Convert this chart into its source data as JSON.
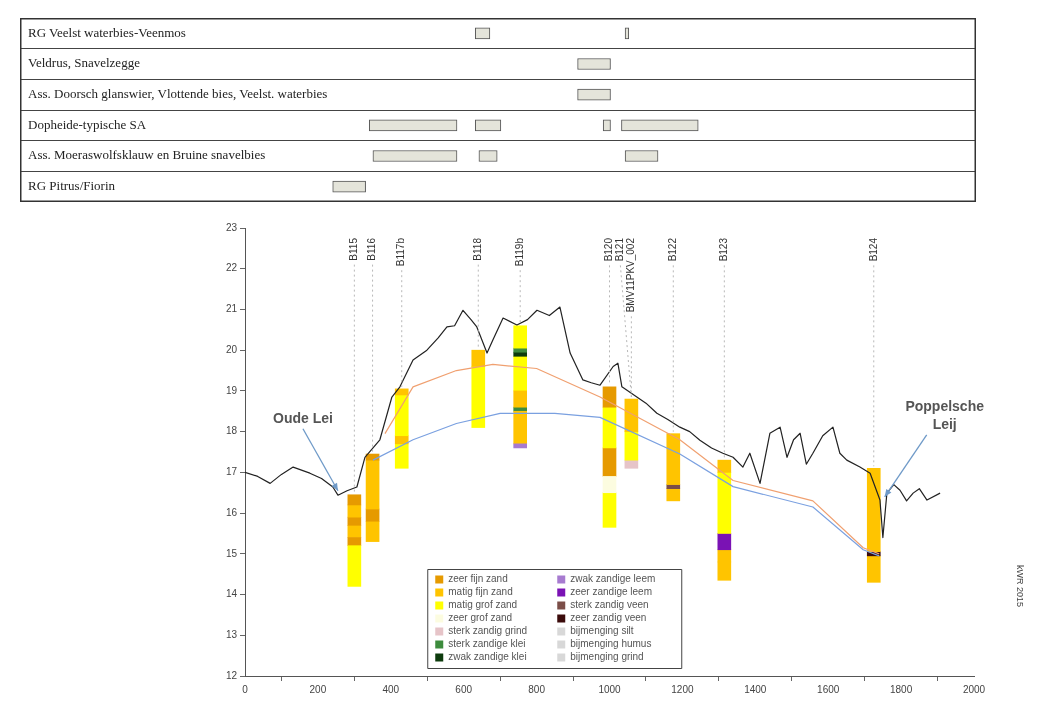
{
  "chart_data": [
    {
      "type": "bar",
      "orientation": "horizontal",
      "categories": [
        "RG Veelst waterbies-Veenmos",
        "Veldrus, Snavelzegge",
        "Ass. Doorsch glanswier, Vlottende bies, Veelst. waterbies",
        "Dopheide-typische SA",
        "Ass. Moeraswolfsklauw en Bruine snavelbies",
        "RG Pitrus/Fiorin"
      ],
      "xlim": [
        0,
        2000
      ],
      "tick_labels": "y",
      "grid": "y",
      "series": [
        {
          "color": "#e4e4da",
          "base": [
            630,
            910,
            910,
            340,
            350,
            240
          ],
          "values": [
            40,
            90,
            90,
            240,
            230,
            90
          ]
        },
        {
          "color": "#e4e4da",
          "base": [
            1040,
            null,
            null,
            630,
            640,
            null
          ],
          "values": [
            10,
            null,
            null,
            70,
            50,
            null
          ]
        },
        {
          "color": "#e4e4da",
          "base": [
            null,
            null,
            null,
            980,
            1040,
            null
          ],
          "values": [
            null,
            null,
            null,
            20,
            90,
            null
          ]
        },
        {
          "color": "#e4e4da",
          "base": [
            null,
            null,
            null,
            1030,
            null,
            null
          ],
          "values": [
            null,
            null,
            null,
            210,
            null,
            null
          ]
        }
      ]
    },
    {
      "type": "bar",
      "xlim": [
        0,
        2000
      ],
      "xticks": [
        0,
        200,
        400,
        600,
        800,
        1000,
        1200,
        1400,
        1600,
        1800,
        2000
      ],
      "ylim": [
        12,
        23
      ],
      "yticks": [
        12,
        13,
        14,
        15,
        16,
        17,
        18,
        19,
        20,
        21,
        22,
        23
      ],
      "legend": "bottom",
      "series": [
        {
          "name": "zeer fijn zand",
          "color": "#e69a00",
          "x": [
            300,
            350,
            1000
          ],
          "base": [
            16.2,
            17.3,
            18.6
          ],
          "values": [
            0.25,
            0.15,
            0.5
          ]
        },
        {
          "name": "matig fijn zand",
          "color": "#ffc400",
          "x": [
            300,
            350,
            430,
            640,
            755,
            1060,
            1175,
            1315,
            1725
          ],
          "base": [
            15.9,
            16.1,
            18.9,
            19.6,
            18.6,
            18.0,
            16.7,
            17.0,
            15.05
          ],
          "values": [
            0.3,
            1.2,
            0.15,
            0.4,
            0.4,
            0.8,
            1.25,
            0.3,
            2.05
          ]
        },
        {
          "name": "matig grof zand",
          "color": "#ffff00",
          "x": [
            300,
            430,
            640,
            755,
            1000,
            1060,
            1315
          ],
          "base": [
            14.2,
            17.9,
            18.1,
            20.05,
            17.6,
            17.3,
            15.5
          ],
          "values": [
            1.0,
            1.0,
            1.5,
            0.55,
            1.0,
            0.7,
            1.5
          ]
        },
        {
          "name": "zeer grof zand",
          "color": "#fcfce0",
          "x": [
            1000
          ],
          "base": [
            16.5
          ],
          "values": [
            0.4
          ]
        },
        {
          "name": "sterk zandig grind",
          "color": "#e6c4c8",
          "x": [
            1060
          ],
          "base": [
            17.1
          ],
          "values": [
            0.2
          ]
        },
        {
          "name": "sterk zandige klei",
          "color": "#3d8b3d",
          "x": [
            755
          ],
          "base": [
            19.95
          ],
          "values": [
            0.1
          ]
        },
        {
          "name": "zwak zandige klei",
          "color": "#0d3b0d",
          "x": [
            755
          ],
          "base": [
            19.85
          ],
          "values": [
            0.1
          ]
        },
        {
          "name": "zwak zandige leem",
          "color": "#a77bd0",
          "x": [
            755
          ],
          "base": [
            17.6
          ],
          "values": [
            0.1
          ]
        },
        {
          "name": "zeer zandige leem",
          "color": "#7a12b4",
          "x": [
            1315
          ],
          "base": [
            15.1
          ],
          "values": [
            0.4
          ]
        },
        {
          "name": "sterk zandig veen",
          "color": "#7b4e48",
          "x": [
            1175
          ],
          "base": [
            16.6
          ],
          "values": [
            0.1
          ]
        },
        {
          "name": "zeer zandig veen",
          "color": "#3b0b0b",
          "x": [
            1725
          ],
          "base": [
            14.95
          ],
          "values": [
            0.1
          ]
        },
        {
          "name": "bijmenging silt",
          "color": "#d8d8d8"
        },
        {
          "name": "bijmenging humus",
          "color": "#d8d8d8"
        },
        {
          "name": "bijmenging grind",
          "color": "#d8d8d8"
        },
        {
          "color": "#e69a00",
          "x": [
            300,
            350,
            1000
          ],
          "base": [
            15.7,
            15.8,
            16.9
          ],
          "values": [
            0.2,
            0.3,
            0.7
          ]
        },
        {
          "color": "#e69a00",
          "x": [
            300
          ],
          "base": [
            15.2
          ],
          "values": [
            0.2
          ]
        },
        {
          "color": "#ffc400",
          "x": [
            300,
            350,
            430,
            755,
            1175,
            1315,
            1725
          ],
          "base": [
            15.4,
            15.3,
            17.7,
            17.7,
            16.3,
            14.8,
            14.3
          ],
          "values": [
            0.3,
            0.5,
            0.2,
            0.8,
            0.3,
            0.3,
            0.65
          ]
        },
        {
          "color": "#ffc400",
          "x": [
            1315
          ],
          "base": [
            14.35
          ],
          "values": [
            0.45
          ]
        },
        {
          "color": "#ffff00",
          "x": [
            430,
            755,
            1000
          ],
          "base": [
            17.1,
            19.0,
            15.65
          ],
          "values": [
            0.6,
            0.85,
            0.85
          ]
        },
        {
          "color": "#3d8b3d",
          "x": [
            755
          ],
          "base": [
            18.5
          ],
          "values": [
            0.1
          ]
        },
        {
          "type": "line",
          "color": "#222222",
          "x": [
            0,
            35,
            69,
            100,
            132,
            178,
            210,
            241,
            255,
            280,
            307,
            329,
            370,
            403,
            425,
            461,
            499,
            530,
            554,
            575,
            598,
            620,
            636,
            664,
            680,
            708,
            746,
            775,
            801,
            835,
            864,
            892,
            927,
            950,
            974,
            1010,
            1023,
            1034,
            1075,
            1100,
            1130,
            1160,
            1193,
            1220,
            1248,
            1280,
            1311,
            1339,
            1366,
            1385,
            1413,
            1440,
            1468,
            1487,
            1505,
            1523,
            1540,
            1558,
            1585,
            1613,
            1632,
            1651,
            1687,
            1715,
            1742,
            1750,
            1761,
            1780,
            1797,
            1815,
            1833,
            1850,
            1871,
            1907
          ],
          "values": [
            17.0,
            16.9,
            16.73,
            16.95,
            17.13,
            16.98,
            16.85,
            16.64,
            16.44,
            16.55,
            16.64,
            17.37,
            17.8,
            18.85,
            19.1,
            19.76,
            20.0,
            20.3,
            20.57,
            20.6,
            20.98,
            20.75,
            20.57,
            19.93,
            20.25,
            20.79,
            20.62,
            20.75,
            20.98,
            20.85,
            21.06,
            19.93,
            19.27,
            19.2,
            19.14,
            19.6,
            19.68,
            19.1,
            18.85,
            18.7,
            18.45,
            18.3,
            18.11,
            18.0,
            17.79,
            17.6,
            17.47,
            17.37,
            17.13,
            17.47,
            16.73,
            17.96,
            18.11,
            17.37,
            17.8,
            17.96,
            17.2,
            17.47,
            17.9,
            18.11,
            17.47,
            17.3,
            17.13,
            16.98,
            16.32,
            15.4,
            16.49,
            16.7,
            16.56,
            16.3,
            16.49,
            16.6,
            16.32,
            16.49
          ]
        },
        {
          "type": "line",
          "color": "#f0a070",
          "x": [
            384,
            461,
            580,
            680,
            800,
            974,
            1193,
            1339,
            1558,
            1696,
            1740
          ],
          "values": [
            17.95,
            19.1,
            19.5,
            19.65,
            19.55,
            18.85,
            17.8,
            16.8,
            16.3,
            15.15,
            15.0
          ]
        },
        {
          "type": "line",
          "color": "#7aa0e0",
          "x": [
            351,
            461,
            580,
            700,
            850,
            974,
            1193,
            1339,
            1558,
            1696,
            1740
          ],
          "values": [
            17.3,
            17.8,
            18.2,
            18.45,
            18.45,
            18.35,
            17.45,
            16.65,
            16.15,
            15.1,
            14.95
          ]
        }
      ],
      "annotations": [
        {
          "text": "B115",
          "x": 300,
          "y": 16.45
        },
        {
          "text": "B116",
          "x": 350,
          "y": 17.45
        },
        {
          "text": "B117b",
          "x": 430,
          "y": 19.05
        },
        {
          "text": "B118",
          "x": 640,
          "y": 20.0
        },
        {
          "text": "B119b",
          "x": 755,
          "y": 20.6
        },
        {
          "text": "B120",
          "x": 1000,
          "y": 19.1
        },
        {
          "text": "BMV11PKV_002",
          "x": 1060,
          "y": 18.8
        },
        {
          "text": "B121",
          "x": 1060,
          "y": 18.8
        },
        {
          "text": "B122",
          "x": 1175,
          "y": 17.95
        },
        {
          "text": "B123",
          "x": 1315,
          "y": 17.3
        },
        {
          "text": "B124",
          "x": 1725,
          "y": 17.1
        },
        {
          "text": "Oude Lei",
          "x": 255,
          "y": 16.45
        },
        {
          "text": "Poppelsche Leij",
          "x": 1755,
          "y": 16.3
        },
        "kWR 2015"
      ]
    }
  ]
}
